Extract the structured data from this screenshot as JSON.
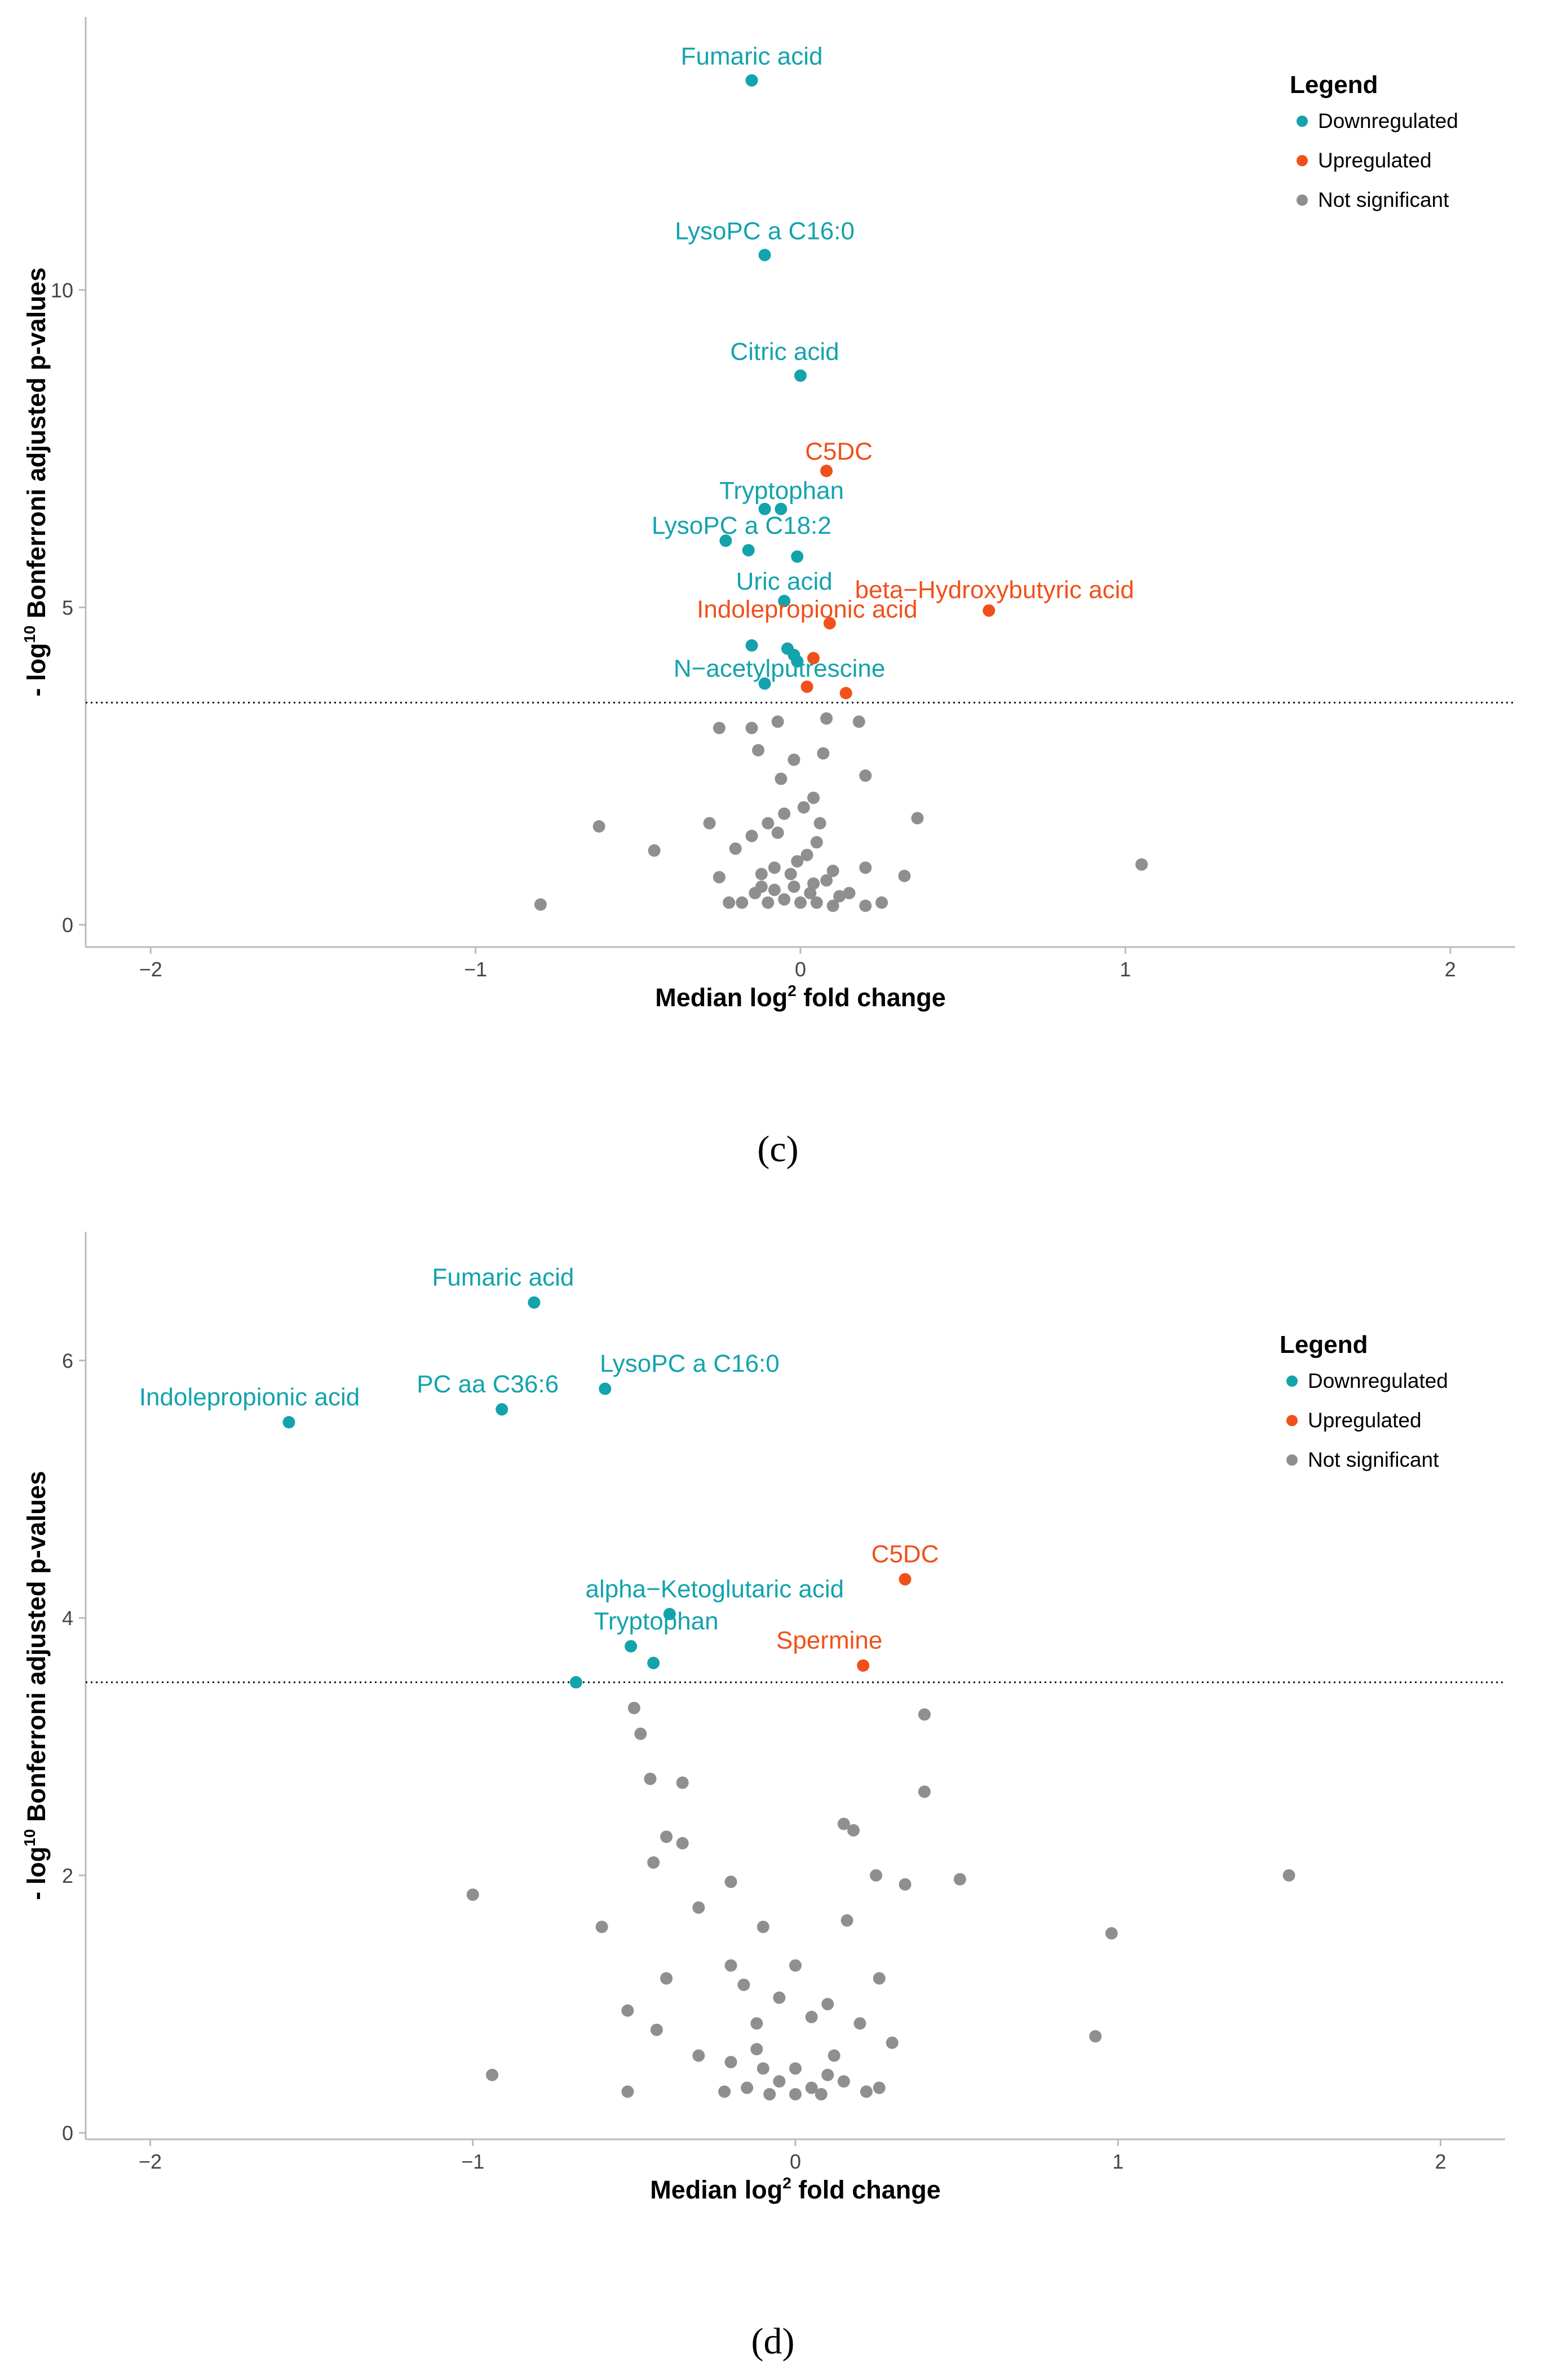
{
  "colors": {
    "downregulated": "#13a3ad",
    "upregulated": "#f0511b",
    "not_significant": "#8f8f8f"
  },
  "chart_data": [
    {
      "type": "scatter",
      "panel_caption": "(c)",
      "xlabel": "Median log2 fold change",
      "ylabel": "- log10 Bonferroni adjusted p-values",
      "xlim": [
        -2.2,
        2.2
      ],
      "ylim": [
        -0.35,
        14.3
      ],
      "x_ticks": [
        -2,
        -1,
        0,
        1,
        2
      ],
      "y_ticks": [
        0,
        5,
        10
      ],
      "threshold_y": 3.5,
      "grid": false,
      "legend": {
        "title": "Legend",
        "position": "top-right",
        "entries": [
          {
            "label": "Downregulated",
            "key": "downregulated"
          },
          {
            "label": "Upregulated",
            "key": "upregulated"
          },
          {
            "label": "Not significant",
            "key": "not_significant"
          }
        ]
      },
      "series": [
        {
          "key": "downregulated",
          "points": [
            {
              "x": -0.15,
              "y": 13.3,
              "label": "Fumaric acid"
            },
            {
              "x": -0.11,
              "y": 10.55,
              "label": "LysoPC a C16:0"
            },
            {
              "x": 0.0,
              "y": 8.65,
              "label": "Citric acid"
            },
            {
              "x": -0.11,
              "y": 6.55,
              "label": "Tryptophan"
            },
            {
              "x": -0.06,
              "y": 6.55
            },
            {
              "x": -0.23,
              "y": 6.05,
              "label": "LysoPC a C18:2"
            },
            {
              "x": -0.16,
              "y": 5.9
            },
            {
              "x": -0.01,
              "y": 5.8
            },
            {
              "x": -0.05,
              "y": 5.1,
              "label": "Uric acid"
            },
            {
              "x": -0.15,
              "y": 4.4
            },
            {
              "x": -0.04,
              "y": 4.35
            },
            {
              "x": -0.02,
              "y": 4.25
            },
            {
              "x": -0.01,
              "y": 4.15
            },
            {
              "x": -0.11,
              "y": 3.8,
              "label": "N-acetylputrescine"
            }
          ]
        },
        {
          "key": "upregulated",
          "points": [
            {
              "x": 0.08,
              "y": 7.15,
              "label": "C5DC"
            },
            {
              "x": 0.58,
              "y": 4.95,
              "label": "beta-Hydroxybutyric acid"
            },
            {
              "x": 0.09,
              "y": 4.75,
              "label": "Indolepropionic acid"
            },
            {
              "x": 0.04,
              "y": 4.2
            },
            {
              "x": 0.02,
              "y": 3.75
            },
            {
              "x": 0.14,
              "y": 3.65
            }
          ]
        },
        {
          "key": "not_significant",
          "points": [
            {
              "x": -0.8,
              "y": 0.32
            },
            {
              "x": -0.62,
              "y": 1.55
            },
            {
              "x": -0.45,
              "y": 1.17
            },
            {
              "x": 1.05,
              "y": 0.95
            },
            {
              "x": 0.36,
              "y": 1.68
            },
            {
              "x": 0.32,
              "y": 0.77
            },
            {
              "x": -0.25,
              "y": 3.1
            },
            {
              "x": -0.15,
              "y": 3.1
            },
            {
              "x": -0.07,
              "y": 3.2
            },
            {
              "x": 0.08,
              "y": 3.25
            },
            {
              "x": 0.18,
              "y": 3.2
            },
            {
              "x": -0.13,
              "y": 2.75
            },
            {
              "x": 0.07,
              "y": 2.7
            },
            {
              "x": 0.2,
              "y": 2.35
            },
            {
              "x": -0.02,
              "y": 2.6
            },
            {
              "x": -0.06,
              "y": 2.3
            },
            {
              "x": 0.04,
              "y": 2.0
            },
            {
              "x": -0.1,
              "y": 1.6
            },
            {
              "x": 0.01,
              "y": 1.85
            },
            {
              "x": -0.28,
              "y": 1.6
            },
            {
              "x": -0.15,
              "y": 1.4
            },
            {
              "x": 0.05,
              "y": 1.3
            },
            {
              "x": 0.1,
              "y": 0.85
            },
            {
              "x": -0.05,
              "y": 1.75
            },
            {
              "x": -0.2,
              "y": 1.2
            },
            {
              "x": 0.2,
              "y": 0.9
            },
            {
              "x": -0.25,
              "y": 0.75
            },
            {
              "x": -0.12,
              "y": 0.8
            },
            {
              "x": -0.08,
              "y": 0.9
            },
            {
              "x": 0.02,
              "y": 1.1
            },
            {
              "x": 0.08,
              "y": 0.7
            },
            {
              "x": 0.15,
              "y": 0.5
            },
            {
              "x": 0.25,
              "y": 0.35
            },
            {
              "x": -0.22,
              "y": 0.35
            },
            {
              "x": -0.18,
              "y": 0.35
            },
            {
              "x": -0.1,
              "y": 0.35
            },
            {
              "x": -0.05,
              "y": 0.4
            },
            {
              "x": 0.0,
              "y": 0.35
            },
            {
              "x": 0.05,
              "y": 0.35
            },
            {
              "x": 0.1,
              "y": 0.3
            },
            {
              "x": 0.2,
              "y": 0.3
            },
            {
              "x": -0.02,
              "y": 0.6
            },
            {
              "x": 0.03,
              "y": 0.5
            },
            {
              "x": -0.08,
              "y": 0.55
            },
            {
              "x": 0.12,
              "y": 0.45
            },
            {
              "x": -0.14,
              "y": 0.5
            },
            {
              "x": -0.03,
              "y": 0.8
            },
            {
              "x": 0.06,
              "y": 1.6
            },
            {
              "x": -0.07,
              "y": 1.45
            },
            {
              "x": -0.12,
              "y": 0.6
            },
            {
              "x": 0.04,
              "y": 0.65
            },
            {
              "x": -0.01,
              "y": 1.0
            }
          ]
        }
      ]
    },
    {
      "type": "scatter",
      "panel_caption": "(d)",
      "xlabel": "Median log2 fold change",
      "ylabel": "- log10 Bonferroni adjusted p-values",
      "xlim": [
        -2.2,
        2.2
      ],
      "ylim": [
        -0.05,
        7.0
      ],
      "x_ticks": [
        -2,
        -1,
        0,
        1,
        2
      ],
      "y_ticks": [
        0,
        2,
        4,
        6
      ],
      "threshold_y": 3.5,
      "grid": false,
      "legend": {
        "title": "Legend",
        "position": "top-right",
        "entries": [
          {
            "label": "Downregulated",
            "key": "downregulated"
          },
          {
            "label": "Upregulated",
            "key": "upregulated"
          },
          {
            "label": "Not significant",
            "key": "not_significant"
          }
        ]
      },
      "series": [
        {
          "key": "downregulated",
          "points": [
            {
              "x": -0.81,
              "y": 6.45,
              "label": "Fumaric acid"
            },
            {
              "x": -0.59,
              "y": 5.78,
              "label": "LysoPC a C16:0"
            },
            {
              "x": -0.91,
              "y": 5.62,
              "label": "PC aa C36:6"
            },
            {
              "x": -1.57,
              "y": 5.52,
              "label": "Indolepropionic acid"
            },
            {
              "x": -0.39,
              "y": 4.03,
              "label": "alpha-Ketoglutaric acid"
            },
            {
              "x": -0.51,
              "y": 3.78,
              "label": "Tryptophan"
            },
            {
              "x": -0.44,
              "y": 3.65
            },
            {
              "x": -0.68,
              "y": 3.5
            }
          ]
        },
        {
          "key": "upregulated",
          "points": [
            {
              "x": 0.34,
              "y": 4.3,
              "label": "C5DC"
            },
            {
              "x": 0.21,
              "y": 3.63,
              "label": "Spermine"
            }
          ]
        },
        {
          "key": "not_significant",
          "points": [
            {
              "x": -1.0,
              "y": 1.85
            },
            {
              "x": -0.94,
              "y": 0.45
            },
            {
              "x": -0.6,
              "y": 1.6
            },
            {
              "x": -0.52,
              "y": 0.32
            },
            {
              "x": 1.53,
              "y": 2.0
            },
            {
              "x": 0.98,
              "y": 1.55
            },
            {
              "x": 0.93,
              "y": 0.75
            },
            {
              "x": -0.5,
              "y": 3.3
            },
            {
              "x": 0.4,
              "y": 3.25
            },
            {
              "x": -0.48,
              "y": 3.1
            },
            {
              "x": -0.45,
              "y": 2.75
            },
            {
              "x": -0.35,
              "y": 2.72
            },
            {
              "x": 0.4,
              "y": 2.65
            },
            {
              "x": 0.15,
              "y": 2.4
            },
            {
              "x": 0.18,
              "y": 2.35
            },
            {
              "x": -0.4,
              "y": 2.3
            },
            {
              "x": -0.35,
              "y": 2.25
            },
            {
              "x": -0.44,
              "y": 2.1
            },
            {
              "x": 0.25,
              "y": 2.0
            },
            {
              "x": 0.51,
              "y": 1.97
            },
            {
              "x": 0.34,
              "y": 1.93
            },
            {
              "x": -0.2,
              "y": 1.95
            },
            {
              "x": -0.3,
              "y": 1.75
            },
            {
              "x": -0.1,
              "y": 1.6
            },
            {
              "x": 0.16,
              "y": 1.65
            },
            {
              "x": -0.2,
              "y": 1.3
            },
            {
              "x": 0.0,
              "y": 1.3
            },
            {
              "x": 0.26,
              "y": 1.2
            },
            {
              "x": -0.4,
              "y": 1.2
            },
            {
              "x": -0.16,
              "y": 1.15
            },
            {
              "x": 0.1,
              "y": 1.0
            },
            {
              "x": -0.05,
              "y": 1.05
            },
            {
              "x": -0.52,
              "y": 0.95
            },
            {
              "x": -0.43,
              "y": 0.8
            },
            {
              "x": -0.12,
              "y": 0.85
            },
            {
              "x": 0.05,
              "y": 0.9
            },
            {
              "x": 0.2,
              "y": 0.85
            },
            {
              "x": 0.3,
              "y": 0.7
            },
            {
              "x": -0.3,
              "y": 0.6
            },
            {
              "x": -0.2,
              "y": 0.55
            },
            {
              "x": -0.1,
              "y": 0.5
            },
            {
              "x": 0.0,
              "y": 0.5
            },
            {
              "x": 0.1,
              "y": 0.45
            },
            {
              "x": -0.05,
              "y": 0.4
            },
            {
              "x": 0.05,
              "y": 0.35
            },
            {
              "x": -0.15,
              "y": 0.35
            },
            {
              "x": 0.15,
              "y": 0.4
            },
            {
              "x": -0.22,
              "y": 0.32
            },
            {
              "x": 0.22,
              "y": 0.32
            },
            {
              "x": 0.0,
              "y": 0.3
            },
            {
              "x": -0.08,
              "y": 0.3
            },
            {
              "x": 0.08,
              "y": 0.3
            },
            {
              "x": -0.12,
              "y": 0.65
            },
            {
              "x": 0.12,
              "y": 0.6
            },
            {
              "x": 0.26,
              "y": 0.35
            }
          ]
        }
      ]
    }
  ]
}
